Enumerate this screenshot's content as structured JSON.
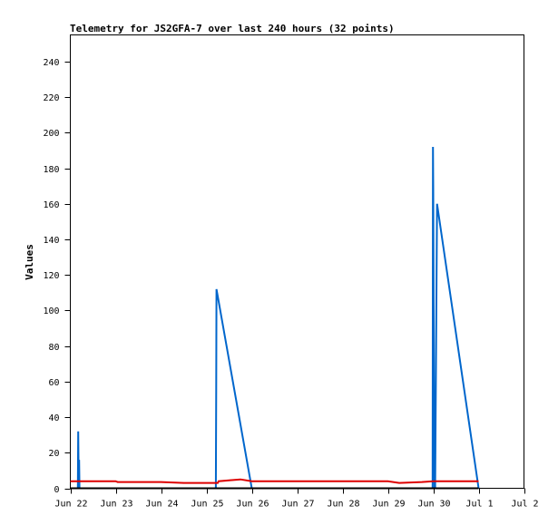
{
  "chart_data": {
    "type": "line",
    "title": "Telemetry for JS2GFA-7 over last 240 hours (32 points)",
    "xlabel": "",
    "ylabel": "Values",
    "x_range": [
      "Jun 22",
      "Jul 2"
    ],
    "ylim": [
      0,
      255
    ],
    "x_ticks": [
      "Jun 22",
      "Jun 23",
      "Jun 24",
      "Jun 25",
      "Jun 26",
      "Jun 27",
      "Jun 28",
      "Jun 29",
      "Jun 30",
      "Jul 1",
      "Jul 2"
    ],
    "y_ticks": [
      "0",
      "20",
      "40",
      "60",
      "80",
      "100",
      "120",
      "140",
      "160",
      "180",
      "200",
      "220",
      "240"
    ],
    "grid": false,
    "legend": "none",
    "series": [
      {
        "color": "#0066cc",
        "points": [
          [
            "Jun 22 04:00",
            0
          ],
          [
            "Jun 22 04:10",
            32
          ],
          [
            "Jun 22 04:20",
            16
          ],
          [
            "Jun 22 04:30",
            0
          ],
          [
            "Jun 22 04:40",
            16
          ],
          [
            "Jun 22 04:50",
            0
          ],
          [
            "Jun 25 05:00",
            0
          ],
          [
            "Jun 25 05:10",
            56
          ],
          [
            "Jun 25 05:20",
            112
          ],
          [
            "Jun 26 00:00",
            0
          ],
          [
            "Jun 29 23:40",
            0
          ],
          [
            "Jun 29 23:50",
            192
          ],
          [
            "Jun 30 00:00",
            168
          ],
          [
            "Jun 30 00:10",
            120
          ],
          [
            "Jun 30 00:20",
            72
          ],
          [
            "Jun 30 00:30",
            24
          ],
          [
            "Jun 30 00:40",
            0
          ],
          [
            "Jun 30 01:00",
            0
          ],
          [
            "Jun 30 02:00",
            160
          ],
          [
            "Jul 1 00:00",
            0
          ]
        ]
      },
      {
        "color": "#dd0000",
        "points": [
          [
            "Jun 22 00:00",
            4
          ],
          [
            "Jun 23 00:00",
            4
          ],
          [
            "Jun 23 01:00",
            3.5
          ],
          [
            "Jun 24 00:00",
            3.5
          ],
          [
            "Jun 24 12:00",
            3
          ],
          [
            "Jun 25 06:00",
            3
          ],
          [
            "Jun 25 06:30",
            4
          ],
          [
            "Jun 25 12:00",
            4.5
          ],
          [
            "Jun 25 18:00",
            5
          ],
          [
            "Jun 26 00:00",
            4
          ],
          [
            "Jun 29 00:00",
            4
          ],
          [
            "Jun 29 06:00",
            3
          ],
          [
            "Jun 29 18:00",
            3.5
          ],
          [
            "Jun 30 00:00",
            4
          ],
          [
            "Jul 1 00:00",
            4
          ]
        ]
      },
      {
        "color": "#000000",
        "points": [
          [
            "Jun 22 00:00",
            0
          ],
          [
            "Jul 1 00:00",
            0
          ]
        ]
      }
    ]
  }
}
